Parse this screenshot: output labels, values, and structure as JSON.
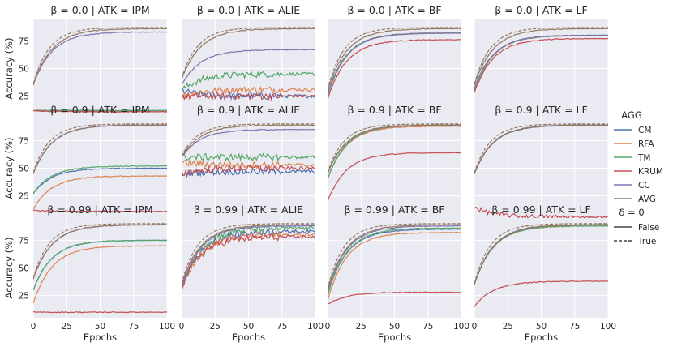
{
  "figure": {
    "xlabel": "Epochs",
    "ylabel": "Accuracy (%)",
    "x_ticks": [
      0,
      25,
      50,
      75,
      100
    ],
    "y_ticks": [
      25,
      50,
      75
    ],
    "legend": {
      "title": "AGG",
      "entries": [
        {
          "name": "CM",
          "color": "#4c72b0"
        },
        {
          "name": "RFA",
          "color": "#dd8452"
        },
        {
          "name": "TM",
          "color": "#55a868"
        },
        {
          "name": "KRUM",
          "color": "#c44e52"
        },
        {
          "name": "CC",
          "color": "#8172b3"
        },
        {
          "name": "AVG",
          "color": "#937860"
        }
      ],
      "style_title": "δ = 0",
      "styles": [
        {
          "name": "False",
          "dash": "solid"
        },
        {
          "name": "True",
          "dash": "dashed"
        }
      ]
    }
  },
  "chart_data": [
    {
      "type": "line",
      "title": "β = 0.0 | ATK = IPM",
      "xlim": [
        0,
        100
      ],
      "ylim": [
        5,
        95
      ],
      "finals": {
        "CM": 12,
        "RFA": 11,
        "TM": 12,
        "KRUM": 11,
        "CC": 83,
        "AVG": 86
      },
      "starts": {
        "CM": 12,
        "RFA": 12,
        "TM": 12,
        "KRUM": 12,
        "CC": 35,
        "AVG": 35
      }
    },
    {
      "type": "line",
      "title": "β = 0.0 | ATK = ALIE",
      "xlim": [
        0,
        100
      ],
      "ylim": [
        5,
        95
      ],
      "finals": {
        "CM": 25,
        "RFA": 31,
        "TM": 45,
        "KRUM": 25,
        "CC": 67,
        "AVG": 86
      },
      "starts": {
        "CM": 30,
        "RFA": 25,
        "TM": 30,
        "KRUM": 25,
        "CC": 35,
        "AVG": 40
      }
    },
    {
      "type": "line",
      "title": "β = 0.0 | ATK = BF",
      "xlim": [
        0,
        100
      ],
      "ylim": [
        5,
        95
      ],
      "finals": {
        "CM": 82,
        "RFA": 82,
        "TM": 82,
        "KRUM": 76,
        "CC": 82,
        "AVG": 86
      },
      "starts": {
        "CM": 25,
        "RFA": 25,
        "TM": 25,
        "KRUM": 22,
        "CC": 27,
        "AVG": 30
      }
    },
    {
      "type": "line",
      "title": "β = 0.0 | ATK = LF",
      "xlim": [
        0,
        100
      ],
      "ylim": [
        5,
        95
      ],
      "finals": {
        "CM": 80,
        "RFA": 80,
        "TM": 80,
        "KRUM": 77,
        "CC": 80,
        "AVG": 86
      },
      "starts": {
        "CM": 30,
        "RFA": 30,
        "TM": 30,
        "KRUM": 28,
        "CC": 32,
        "AVG": 35
      }
    },
    {
      "type": "line",
      "title": "β = 0.9 | ATK = IPM",
      "xlim": [
        0,
        100
      ],
      "ylim": [
        5,
        95
      ],
      "finals": {
        "CM": 50,
        "RFA": 43,
        "TM": 52,
        "KRUM": 11,
        "CC": 89,
        "AVG": 89
      },
      "starts": {
        "CM": 27,
        "RFA": 13,
        "TM": 27,
        "KRUM": 12,
        "CC": 45,
        "AVG": 45
      }
    },
    {
      "type": "line",
      "title": "β = 0.9 | ATK = ALIE",
      "xlim": [
        0,
        100
      ],
      "ylim": [
        5,
        95
      ],
      "finals": {
        "CM": 47,
        "RFA": 53,
        "TM": 60,
        "KRUM": 50,
        "CC": 85,
        "AVG": 89
      },
      "starts": {
        "CM": 45,
        "RFA": 55,
        "TM": 60,
        "KRUM": 45,
        "CC": 60,
        "AVG": 60
      }
    },
    {
      "type": "line",
      "title": "β = 0.9 | ATK = BF",
      "xlim": [
        0,
        100
      ],
      "ylim": [
        5,
        95
      ],
      "finals": {
        "CM": 89,
        "RFA": 88,
        "TM": 89,
        "KRUM": 64,
        "CC": 89,
        "AVG": 89
      },
      "starts": {
        "CM": 40,
        "RFA": 40,
        "TM": 40,
        "KRUM": 20,
        "CC": 45,
        "AVG": 45
      }
    },
    {
      "type": "line",
      "title": "β = 0.9 | ATK = LF",
      "xlim": [
        0,
        100
      ],
      "ylim": [
        5,
        95
      ],
      "finals": {
        "CM": 89,
        "RFA": 89,
        "TM": 89,
        "KRUM": 6,
        "CC": 89,
        "AVG": 89
      },
      "starts": {
        "CM": 45,
        "RFA": 45,
        "TM": 45,
        "KRUM": 15,
        "CC": 45,
        "AVG": 45
      }
    },
    {
      "type": "line",
      "title": "β = 0.99 | ATK = IPM",
      "xlim": [
        0,
        100
      ],
      "ylim": [
        5,
        95
      ],
      "finals": {
        "CM": 75,
        "RFA": 70,
        "TM": 75,
        "KRUM": 10,
        "CC": 89,
        "AVG": 89
      },
      "starts": {
        "CM": 30,
        "RFA": 18,
        "TM": 30,
        "KRUM": 10,
        "CC": 40,
        "AVG": 40
      }
    },
    {
      "type": "line",
      "title": "β = 0.99 | ATK = ALIE",
      "xlim": [
        0,
        100
      ],
      "ylim": [
        5,
        95
      ],
      "finals": {
        "CM": 83,
        "RFA": 80,
        "TM": 86,
        "KRUM": 78,
        "CC": 88,
        "AVG": 89
      },
      "starts": {
        "CM": 32,
        "RFA": 32,
        "TM": 32,
        "KRUM": 32,
        "CC": 32,
        "AVG": 35
      }
    },
    {
      "type": "line",
      "title": "β = 0.99 | ATK = BF",
      "xlim": [
        0,
        100
      ],
      "ylim": [
        5,
        95
      ],
      "finals": {
        "CM": 85,
        "RFA": 82,
        "TM": 86,
        "KRUM": 28,
        "CC": 88,
        "AVG": 89
      },
      "starts": {
        "CM": 25,
        "RFA": 20,
        "TM": 25,
        "KRUM": 17,
        "CC": 28,
        "AVG": 30
      }
    },
    {
      "type": "line",
      "title": "β = 0.99 | ATK = LF",
      "xlim": [
        0,
        100
      ],
      "ylim": [
        5,
        95
      ],
      "finals": {
        "CM": 88,
        "RFA": 88,
        "TM": 88,
        "KRUM": 38,
        "CC": 89,
        "AVG": 89
      },
      "starts": {
        "CM": 35,
        "RFA": 35,
        "TM": 35,
        "KRUM": 15,
        "CC": 35,
        "AVG": 35
      }
    }
  ]
}
